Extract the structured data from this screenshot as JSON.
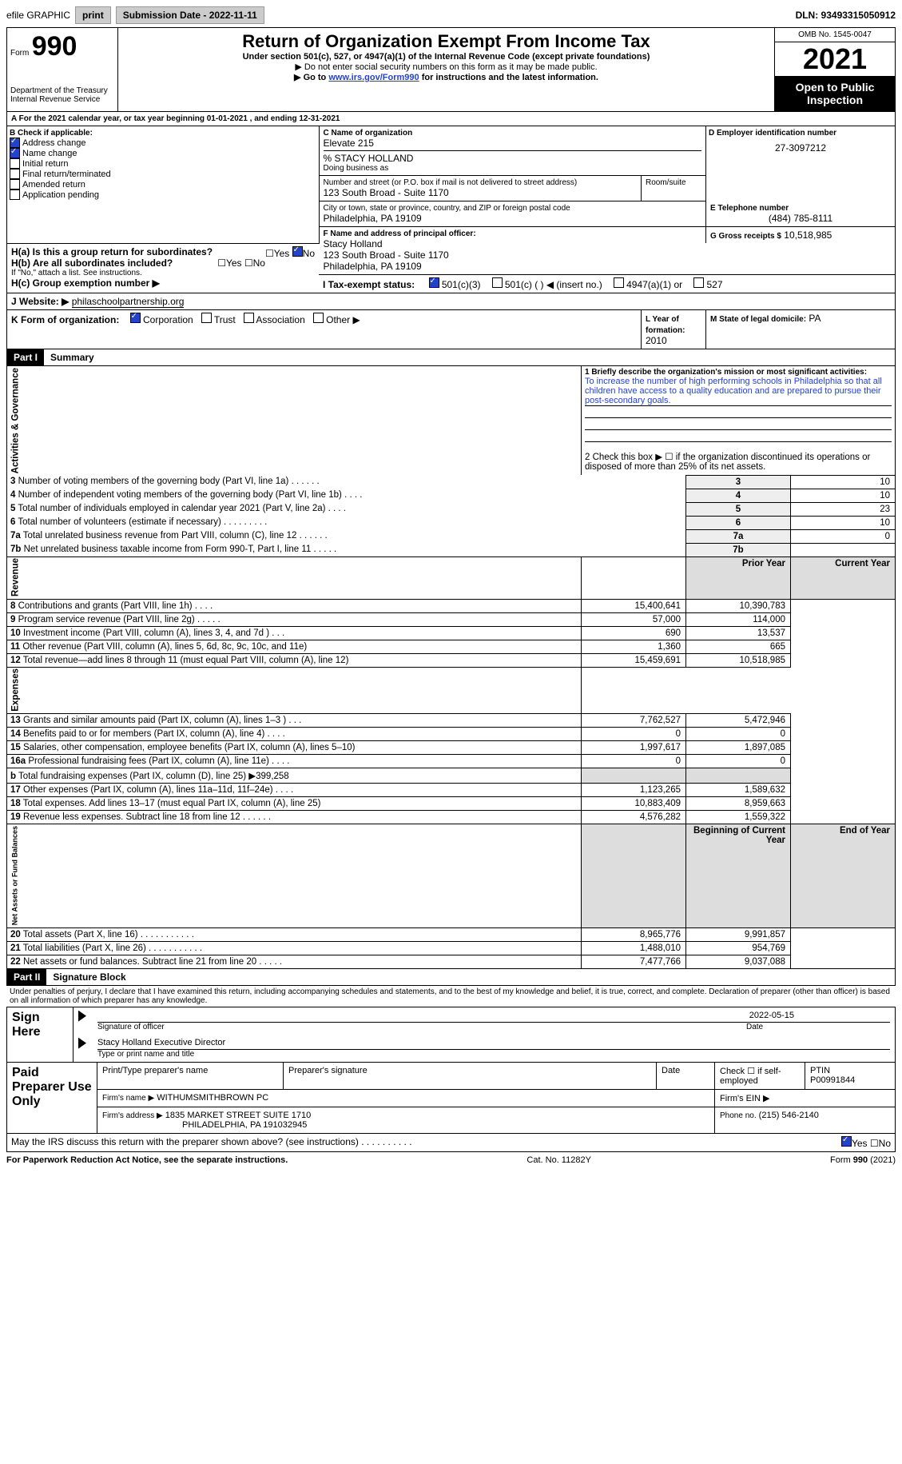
{
  "topbar": {
    "efile": "efile GRAPHIC",
    "print": "print",
    "sub_label": "Submission Date - 2022-11-11",
    "dln": "DLN: 93493315050912"
  },
  "header": {
    "form_word": "Form",
    "form_num": "990",
    "dept1": "Department of the Treasury",
    "dept2": "Internal Revenue Service",
    "title": "Return of Organization Exempt From Income Tax",
    "sub1": "Under section 501(c), 527, or 4947(a)(1) of the Internal Revenue Code (except private foundations)",
    "sub2": "▶ Do not enter social security numbers on this form as it may be made public.",
    "sub3a": "▶ Go to ",
    "sub3_link": "www.irs.gov/Form990",
    "sub3b": " for instructions and the latest information.",
    "omb": "OMB No. 1545-0047",
    "year": "2021",
    "open": "Open to Public Inspection"
  },
  "period": {
    "line_a": "A For the 2021 calendar year, or tax year beginning ",
    "begin": "01-01-2021",
    "mid": " , and ending ",
    "end": "12-31-2021"
  },
  "boxB": {
    "title": "B Check if applicable:",
    "items": [
      {
        "label": "Address change",
        "checked": true
      },
      {
        "label": "Name change",
        "checked": true
      },
      {
        "label": "Initial return",
        "checked": false
      },
      {
        "label": "Final return/terminated",
        "checked": false
      },
      {
        "label": "Amended return",
        "checked": false
      },
      {
        "label": "Application pending",
        "checked": false
      }
    ]
  },
  "boxC": {
    "label": "C Name of organization",
    "org": "Elevate 215",
    "care_of": "% STACY HOLLAND",
    "dba_label": "Doing business as",
    "addr_label": "Number and street (or P.O. box if mail is not delivered to street address)",
    "room_label": "Room/suite",
    "addr": "123 South Broad - Suite 1170",
    "city_label": "City or town, state or province, country, and ZIP or foreign postal code",
    "city": "Philadelphia, PA  19109"
  },
  "boxD": {
    "label": "D Employer identification number",
    "value": "27-3097212"
  },
  "boxE": {
    "label": "E Telephone number",
    "value": "(484) 785-8111"
  },
  "boxG": {
    "label": "G Gross receipts $",
    "value": "10,518,985"
  },
  "boxF": {
    "label": "F  Name and address of principal officer:",
    "name": "Stacy Holland",
    "addr1": "123 South Broad - Suite 1170",
    "addr2": "Philadelphia, PA  19109"
  },
  "boxH": {
    "ha": "H(a)  Is this a group return for subordinates?",
    "hb": "H(b)  Are all subordinates included?",
    "note": "If \"No,\" attach a list. See instructions.",
    "hc": "H(c)  Group exemption number ▶",
    "yes": "Yes",
    "no": "No",
    "ha_no_checked": true
  },
  "boxI": {
    "label": "I    Tax-exempt status:",
    "opts": [
      "501(c)(3)",
      "501(c) (  ) ◀ (insert no.)",
      "4947(a)(1) or",
      "527"
    ],
    "checked_idx": 0
  },
  "boxJ": {
    "label": "J   Website: ▶",
    "value": "philaschoolpartnership.org"
  },
  "boxK": {
    "label": "K Form of organization:",
    "opts": [
      "Corporation",
      "Trust",
      "Association",
      "Other ▶"
    ],
    "checked_idx": 0
  },
  "boxL": {
    "label": "L Year of formation:",
    "value": "2010"
  },
  "boxM": {
    "label": "M State of legal domicile:",
    "value": "PA"
  },
  "part1": {
    "hdr": "Part I",
    "title": "Summary",
    "mission_label": "1   Briefly describe the organization's mission or most significant activities:",
    "mission": "To increase the number of high performing schools in Philadelphia so that all children have access to a quality education and are prepared to pursue their post-secondary goals.",
    "line2": "2   Check this box ▶ ☐  if the organization discontinued its operations or disposed of more than 25% of its net assets.",
    "sections": {
      "gov": "Activities & Governance",
      "rev": "Revenue",
      "exp": "Expenses",
      "net": "Net Assets or Fund Balances"
    },
    "gov_rows": [
      {
        "n": "3",
        "desc": "Number of voting members of the governing body (Part VI, line 1a)   .    .    .    .    .    .",
        "val": "10"
      },
      {
        "n": "4",
        "desc": "Number of independent voting members of the governing body (Part VI, line 1b)   .    .    .    .",
        "val": "10"
      },
      {
        "n": "5",
        "desc": "Total number of individuals employed in calendar year 2021 (Part V, line 2a)   .    .    .    .",
        "val": "23"
      },
      {
        "n": "6",
        "desc": "Total number of volunteers (estimate if necessary)    .    .    .    .    .    .    .    .    .",
        "val": "10"
      },
      {
        "n": "7a",
        "desc": "Total unrelated business revenue from Part VIII, column (C), line 12   .    .    .    .    .    .",
        "val": "0"
      },
      {
        "n": "7b",
        "desc": "Net unrelated business taxable income from Form 990-T, Part I, line 11    .    .    .    .    .",
        "val": ""
      }
    ],
    "col_hdr": {
      "prior": "Prior Year",
      "current": "Current Year"
    },
    "rev_rows": [
      {
        "n": "8",
        "desc": "Contributions and grants (Part VIII, line 1h)    .    .    .    .",
        "p": "15,400,641",
        "c": "10,390,783"
      },
      {
        "n": "9",
        "desc": "Program service revenue (Part VIII, line 2g)   .    .    .    .    .",
        "p": "57,000",
        "c": "114,000"
      },
      {
        "n": "10",
        "desc": "Investment income (Part VIII, column (A), lines 3, 4, and 7d )   .    .    .",
        "p": "690",
        "c": "13,537"
      },
      {
        "n": "11",
        "desc": "Other revenue (Part VIII, column (A), lines 5, 6d, 8c, 9c, 10c, and 11e)",
        "p": "1,360",
        "c": "665"
      },
      {
        "n": "12",
        "desc": "Total revenue—add lines 8 through 11 (must equal Part VIII, column (A), line 12)",
        "p": "15,459,691",
        "c": "10,518,985"
      }
    ],
    "exp_rows": [
      {
        "n": "13",
        "desc": "Grants and similar amounts paid (Part IX, column (A), lines 1–3 )   .    .    .",
        "p": "7,762,527",
        "c": "5,472,946"
      },
      {
        "n": "14",
        "desc": "Benefits paid to or for members (Part IX, column (A), line 4)   .    .    .    .",
        "p": "0",
        "c": "0"
      },
      {
        "n": "15",
        "desc": "Salaries, other compensation, employee benefits (Part IX, column (A), lines 5–10)",
        "p": "1,997,617",
        "c": "1,897,085"
      },
      {
        "n": "16a",
        "desc": "Professional fundraising fees (Part IX, column (A), line 11e)   .    .    .    .",
        "p": "0",
        "c": "0"
      },
      {
        "n": "b",
        "desc": "Total fundraising expenses (Part IX, column (D), line 25) ▶399,258",
        "shade": true
      },
      {
        "n": "17",
        "desc": "Other expenses (Part IX, column (A), lines 11a–11d, 11f–24e)   .    .    .    .",
        "p": "1,123,265",
        "c": "1,589,632"
      },
      {
        "n": "18",
        "desc": "Total expenses. Add lines 13–17 (must equal Part IX, column (A), line 25)",
        "p": "10,883,409",
        "c": "8,959,663"
      },
      {
        "n": "19",
        "desc": "Revenue less expenses. Subtract line 18 from line 12   .    .    .    .    .    .",
        "p": "4,576,282",
        "c": "1,559,322"
      }
    ],
    "net_hdr": {
      "begin": "Beginning of Current Year",
      "end": "End of Year"
    },
    "net_rows": [
      {
        "n": "20",
        "desc": "Total assets (Part X, line 16)   .    .    .    .    .    .    .    .    .    .    .",
        "p": "8,965,776",
        "c": "9,991,857"
      },
      {
        "n": "21",
        "desc": "Total liabilities (Part X, line 26)   .    .    .    .    .    .    .    .    .    .    .",
        "p": "1,488,010",
        "c": "954,769"
      },
      {
        "n": "22",
        "desc": "Net assets or fund balances. Subtract line 21 from line 20   .    .    .    .    .",
        "p": "7,477,766",
        "c": "9,037,088"
      }
    ]
  },
  "part2": {
    "hdr": "Part II",
    "title": "Signature Block",
    "decl": "Under penalties of perjury, I declare that I have examined this return, including accompanying schedules and statements, and to the best of my knowledge and belief, it is true, correct, and complete. Declaration of preparer (other than officer) is based on all information of which preparer has any knowledge.",
    "sign_here": "Sign Here",
    "date": "2022-05-15",
    "sig_label": "Signature of officer",
    "date_label": "Date",
    "name": "Stacy Holland  Executive Director",
    "name_label": "Type or print name and title",
    "paid": "Paid Preparer Use Only",
    "prep_name_label": "Print/Type preparer's name",
    "prep_sig_label": "Preparer's signature",
    "prep_date_label": "Date",
    "check_if": "Check ☐ if self-employed",
    "ptin_label": "PTIN",
    "ptin": "P00991844",
    "firm_name_label": "Firm's name    ▶",
    "firm_name": "WITHUMSMITHBROWN PC",
    "firm_ein_label": "Firm's EIN ▶",
    "firm_addr_label": "Firm's address ▶",
    "firm_addr1": "1835 MARKET STREET SUITE 1710",
    "firm_addr2": "PHILADELPHIA, PA  191032945",
    "phone_label": "Phone no.",
    "phone": "(215) 546-2140",
    "discuss": "May the IRS discuss this return with the preparer shown above? (see instructions)   .    .    .    .    .    .    .    .    .    .",
    "discuss_yes_checked": true
  },
  "footer": {
    "left": "For Paperwork Reduction Act Notice, see the separate instructions.",
    "mid": "Cat. No. 11282Y",
    "right": "Form 990 (2021)"
  }
}
